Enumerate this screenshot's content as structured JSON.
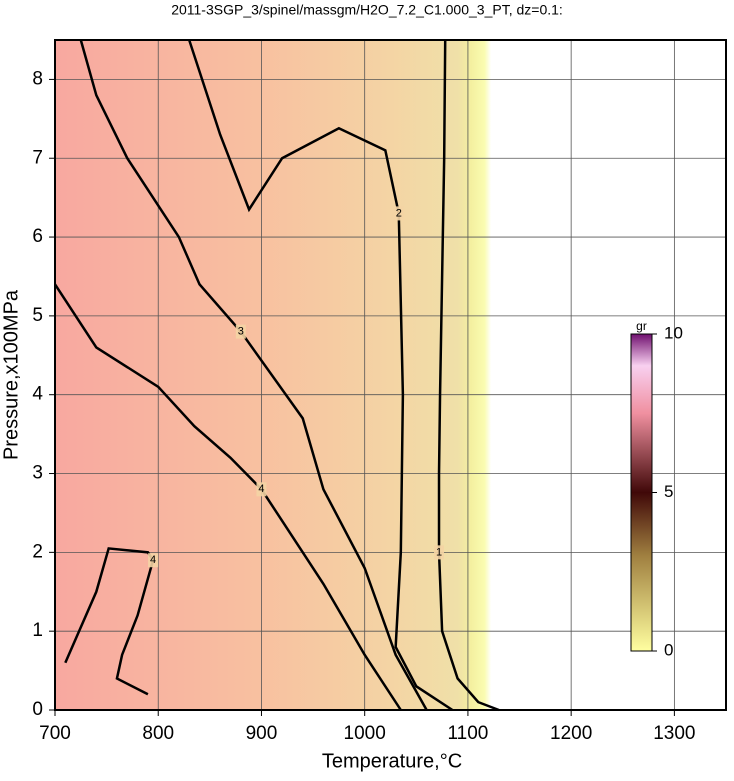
{
  "chart_data": {
    "type": "contour",
    "title": "2011-3SGP_3/spinel/massgm/H2O_7.2_C1.000_3_PT, dz=0.1:",
    "x_label": "Temperature,°C",
    "y_label": "Pressure,x100MPa",
    "xlim": [
      700,
      1350
    ],
    "ylim": [
      0,
      8.5
    ],
    "xticks": [
      700,
      800,
      900,
      1000,
      1100,
      1200,
      1300
    ],
    "yticks": [
      0,
      1,
      2,
      3,
      4,
      5,
      6,
      7,
      8
    ],
    "grid": true,
    "contours": [
      {
        "level": 1,
        "x": [
          1078,
          1077,
          1075,
          1073,
          1072,
          1072,
          1075,
          1090,
          1110,
          1130
        ],
        "y": [
          8.5,
          7.0,
          5.5,
          4.0,
          3.0,
          2.0,
          1.0,
          0.4,
          0.1,
          0
        ]
      },
      {
        "level": 2,
        "x": [
          830,
          860,
          888,
          920,
          975,
          1020,
          1033,
          1037,
          1035,
          1030,
          1050,
          1085
        ],
        "y": [
          8.5,
          7.3,
          6.35,
          7.0,
          7.38,
          7.1,
          6.3,
          4.0,
          2.0,
          0.8,
          0.3,
          0
        ]
      },
      {
        "level": 3,
        "x": [
          725,
          740,
          770,
          820,
          840,
          880,
          940,
          960,
          1000,
          1030,
          1060
        ],
        "y": [
          8.5,
          7.8,
          7.0,
          6.0,
          5.4,
          4.8,
          3.7,
          2.8,
          1.8,
          0.7,
          0
        ]
      },
      {
        "level": 4,
        "x": [
          700,
          740,
          800,
          835,
          870,
          900,
          920,
          960,
          1000,
          1035
        ],
        "y": [
          5.4,
          4.6,
          4.1,
          3.6,
          3.2,
          2.8,
          2.4,
          1.6,
          0.7,
          0
        ]
      },
      {
        "level": 4,
        "x": [
          710,
          740,
          752,
          790,
          795,
          780,
          765,
          760,
          790
        ],
        "y": [
          0.6,
          1.5,
          2.05,
          2.0,
          1.9,
          1.2,
          0.7,
          0.4,
          0.2
        ]
      }
    ],
    "colorbar": {
      "label": "gr",
      "lim": [
        0,
        10
      ],
      "ticks": [
        0,
        5,
        10
      ]
    }
  }
}
